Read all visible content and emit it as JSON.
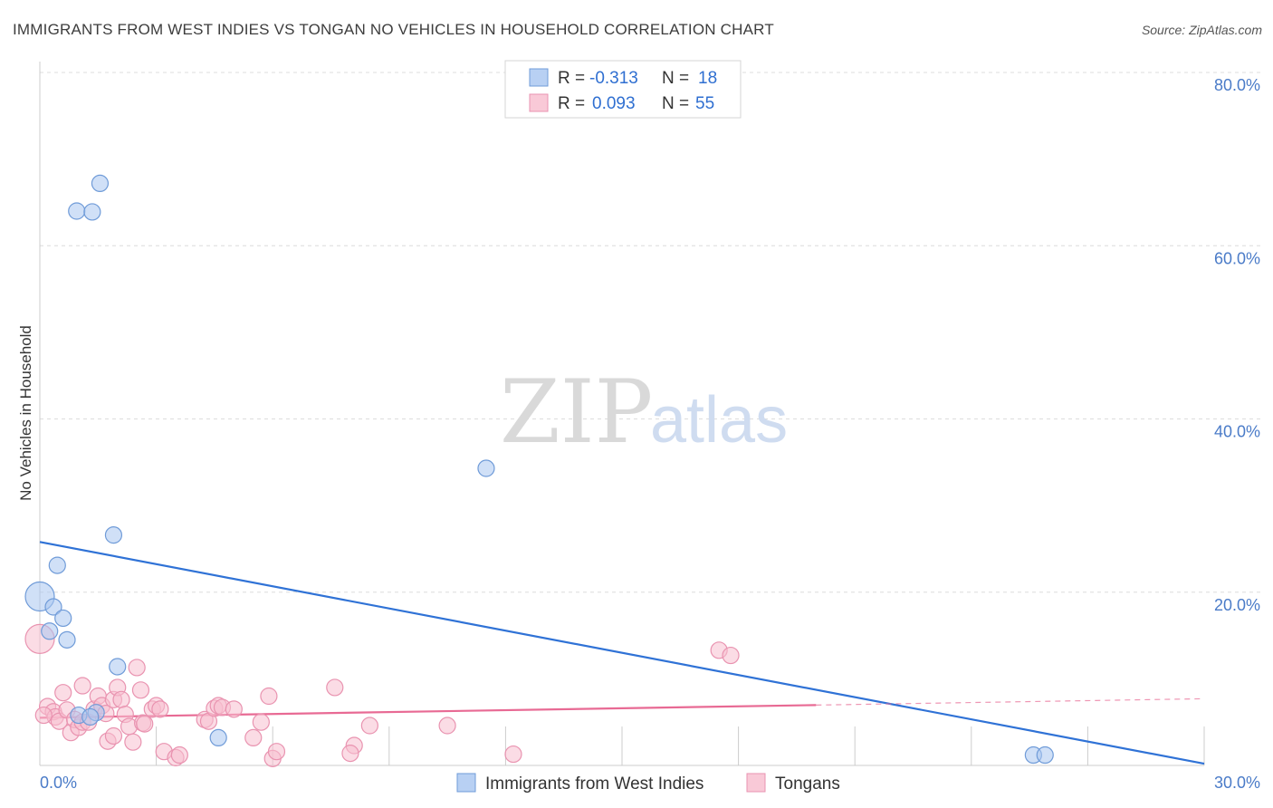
{
  "chart_data": {
    "type": "scatter",
    "title": "IMMIGRANTS FROM WEST INDIES VS TONGAN NO VEHICLES IN HOUSEHOLD CORRELATION CHART",
    "source": "Source: ZipAtlas.com",
    "ylabel": "No Vehicles in Household",
    "xlabel": "",
    "xlim": [
      0,
      30
    ],
    "ylim": [
      0,
      80
    ],
    "x_tick_labels": [
      "0.0%",
      "30.0%"
    ],
    "y_ticks": [
      20,
      40,
      60,
      80
    ],
    "y_tick_labels": [
      "20.0%",
      "40.0%",
      "60.0%",
      "80.0%"
    ],
    "grid": true,
    "watermark": {
      "zip": "ZIP",
      "atlas": "atlas"
    },
    "legend_box": [
      {
        "r_label": "R =",
        "r_value": "-0.313",
        "n_label": "N =",
        "n_value": "18"
      },
      {
        "r_label": "R =",
        "r_value": "0.093",
        "n_label": "N =",
        "n_value": "55"
      }
    ],
    "series": [
      {
        "name": "Immigrants from West Indies",
        "color": "#a9c6f0",
        "stroke": "#6f9bd8",
        "line_color": "#2f72d6",
        "trend": {
          "x0": 0,
          "y0": 25.8,
          "x1": 30,
          "y1": 0.2,
          "dashed_from": null
        },
        "points": [
          [
            1.55,
            67.2
          ],
          [
            0.95,
            64.0
          ],
          [
            1.35,
            63.9
          ],
          [
            11.5,
            34.3
          ],
          [
            1.9,
            26.6
          ],
          [
            0.45,
            23.1
          ],
          [
            0.0,
            19.5
          ],
          [
            0.35,
            18.3
          ],
          [
            0.6,
            17.0
          ],
          [
            0.25,
            15.5
          ],
          [
            0.7,
            14.5
          ],
          [
            2.0,
            11.4
          ],
          [
            1.45,
            6.1
          ],
          [
            1.0,
            5.8
          ],
          [
            4.6,
            3.2
          ],
          [
            25.6,
            1.2
          ],
          [
            25.9,
            1.2
          ],
          [
            1.3,
            5.6
          ]
        ],
        "sizes": [
          9,
          9,
          9,
          9,
          9,
          9,
          16,
          9,
          9,
          9,
          9,
          9,
          9,
          9,
          9,
          9,
          9,
          9
        ]
      },
      {
        "name": "Tongans",
        "color": "#f7c0d0",
        "stroke": "#e993b0",
        "line_color": "#e86a94",
        "trend": {
          "x0": 0,
          "y0": 5.5,
          "x1": 30,
          "y1": 7.7,
          "dashed_from": 20
        },
        "points": [
          [
            0.0,
            14.6
          ],
          [
            0.2,
            6.8
          ],
          [
            0.35,
            6.2
          ],
          [
            0.4,
            5.6
          ],
          [
            0.5,
            5.1
          ],
          [
            0.6,
            8.4
          ],
          [
            0.7,
            6.4
          ],
          [
            0.8,
            3.8
          ],
          [
            0.9,
            5.3
          ],
          [
            1.0,
            4.4
          ],
          [
            1.1,
            5.0
          ],
          [
            1.1,
            9.2
          ],
          [
            1.25,
            5.0
          ],
          [
            1.4,
            6.5
          ],
          [
            1.5,
            8.0
          ],
          [
            1.6,
            6.9
          ],
          [
            1.7,
            6.0
          ],
          [
            1.75,
            2.8
          ],
          [
            1.9,
            3.4
          ],
          [
            1.9,
            7.6
          ],
          [
            2.0,
            9.0
          ],
          [
            2.1,
            7.6
          ],
          [
            2.2,
            5.9
          ],
          [
            2.3,
            4.5
          ],
          [
            2.4,
            2.7
          ],
          [
            2.5,
            11.3
          ],
          [
            2.6,
            8.7
          ],
          [
            2.65,
            4.9
          ],
          [
            2.7,
            4.8
          ],
          [
            2.9,
            6.5
          ],
          [
            3.0,
            6.9
          ],
          [
            3.1,
            6.5
          ],
          [
            3.2,
            1.6
          ],
          [
            3.5,
            0.9
          ],
          [
            3.6,
            1.2
          ],
          [
            4.25,
            5.3
          ],
          [
            4.35,
            5.1
          ],
          [
            4.5,
            6.6
          ],
          [
            4.6,
            6.9
          ],
          [
            4.7,
            6.7
          ],
          [
            5.0,
            6.5
          ],
          [
            5.5,
            3.2
          ],
          [
            5.7,
            5.0
          ],
          [
            5.9,
            8.0
          ],
          [
            6.0,
            0.8
          ],
          [
            6.1,
            1.6
          ],
          [
            7.6,
            9.0
          ],
          [
            8.1,
            2.3
          ],
          [
            8.0,
            1.4
          ],
          [
            8.5,
            4.6
          ],
          [
            10.5,
            4.6
          ],
          [
            12.2,
            1.3
          ],
          [
            17.5,
            13.3
          ],
          [
            17.8,
            12.7
          ],
          [
            0.1,
            5.8
          ]
        ],
        "sizes": [
          16,
          9,
          9,
          9,
          9,
          9,
          9,
          9,
          9,
          9,
          9,
          9,
          9,
          9,
          9,
          9,
          9,
          9,
          9,
          9,
          9,
          9,
          9,
          9,
          9,
          9,
          9,
          9,
          9,
          9,
          9,
          9,
          9,
          9,
          9,
          9,
          9,
          9,
          9,
          9,
          9,
          9,
          9,
          9,
          9,
          9,
          9,
          9,
          9,
          9,
          9,
          9,
          9,
          9,
          9
        ]
      }
    ]
  }
}
